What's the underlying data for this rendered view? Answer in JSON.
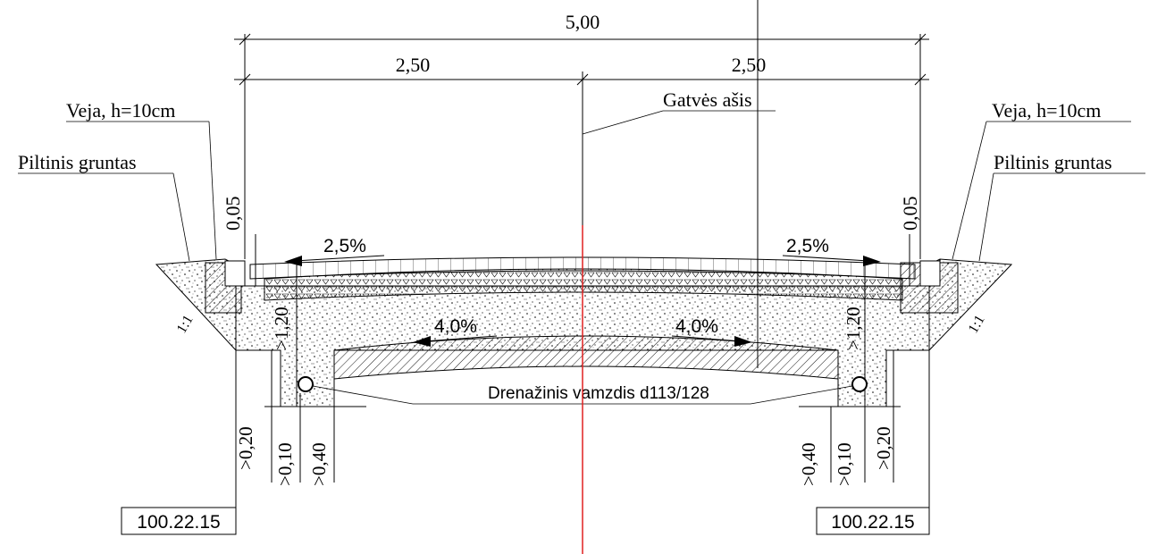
{
  "dimensions": {
    "total_width": "5,00",
    "left_half": "2,50",
    "right_half": "2,50",
    "left_curb_height": "0,05",
    "right_curb_height": "0,05",
    "left_depth": ">1,20",
    "right_depth": ">1,20",
    "left_bottom": [
      ">0,20",
      ">0,10",
      ">0,40"
    ],
    "right_bottom": [
      ">0,40",
      ">0,10",
      ">0,20"
    ]
  },
  "labels": {
    "street_axis": "Gatvės ašis",
    "left_lawn": "Veja, h=10cm",
    "left_fill": "Piltinis gruntas",
    "right_lawn": "Veja, h=10cm",
    "right_fill": "Piltinis gruntas",
    "drain_pipe": "Drenažinis vamzdis  d113/128",
    "left_slope_ratio": "1:1",
    "right_slope_ratio": "1:1"
  },
  "slopes": {
    "surface_left": "2,5%",
    "surface_right": "2,5%",
    "sub_left": "4,0%",
    "sub_right": "4,0%"
  },
  "elevations": {
    "left": "100.22.15",
    "right": "100.22.15"
  },
  "colors": {
    "line": "#000000",
    "center_axis": "#e02020"
  }
}
